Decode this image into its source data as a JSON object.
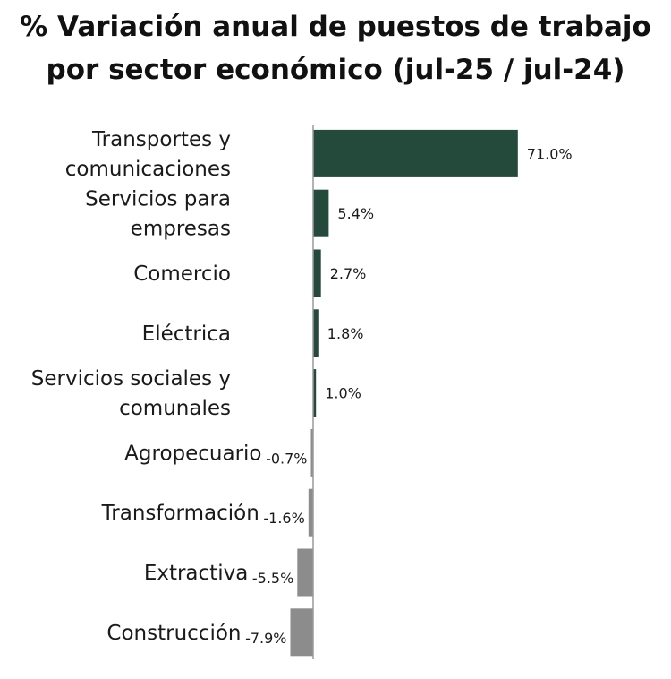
{
  "chart_data": {
    "type": "bar",
    "orientation": "horizontal",
    "title": "% Variación anual de puestos de trabajo por sector económico (jul-25 / jul-24)",
    "title_lines": [
      "% Variación anual de puestos de trabajo",
      "por sector económico (jul-25 / jul-24)"
    ],
    "categories": [
      "Transportes y comunicaciones",
      "Servicios para empresas",
      "Comercio",
      "Eléctrica",
      "Servicios sociales y comunales",
      "Agropecuario",
      "Transformación",
      "Extractiva",
      "Construcción"
    ],
    "category_lines": [
      [
        "Transportes y",
        "comunicaciones"
      ],
      [
        "Servicios para",
        "empresas"
      ],
      [
        "Comercio"
      ],
      [
        "Eléctrica"
      ],
      [
        "Servicios sociales y",
        "comunales"
      ],
      [
        "Agropecuario"
      ],
      [
        "Transformación"
      ],
      [
        "Extractiva"
      ],
      [
        "Construcción"
      ]
    ],
    "values": [
      71.0,
      5.4,
      2.7,
      1.8,
      1.0,
      -0.7,
      -1.6,
      -5.5,
      -7.9
    ],
    "value_labels": [
      "71.0%",
      "5.4%",
      "2.7%",
      "1.8%",
      "1.0%",
      "-0.7%",
      "-1.6%",
      "-5.5%",
      "-7.9%"
    ],
    "xlim": [
      -7.9,
      71.0
    ],
    "xlabel": "",
    "ylabel": "",
    "grid": false,
    "legend": "none"
  },
  "colors": {
    "positive": "#234a3a",
    "negative": "#8c8c8c",
    "axis": "#9a9a9a",
    "text": "#1a1a1a"
  }
}
